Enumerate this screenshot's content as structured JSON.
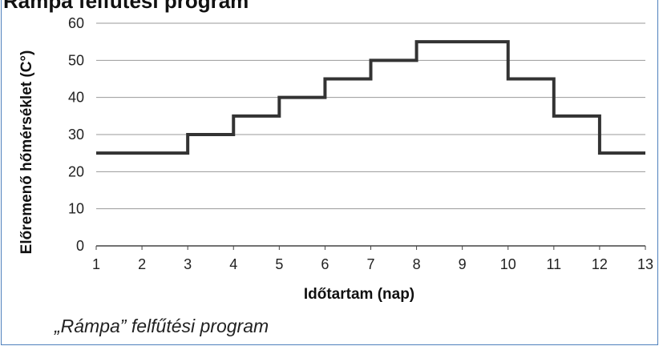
{
  "top_title": "Rámpa felfűtési program",
  "caption": "„Rámpa” felfűtési program",
  "chart_data": {
    "type": "line",
    "step": "post",
    "xlabel": "Időtartam (nap)",
    "ylabel": "Előremenő hőmérséklet (C°)",
    "xlim": [
      1,
      13
    ],
    "ylim": [
      0,
      60
    ],
    "x_ticks": [
      1,
      2,
      3,
      4,
      5,
      6,
      7,
      8,
      9,
      10,
      11,
      12,
      13
    ],
    "y_ticks": [
      0,
      10,
      20,
      30,
      40,
      50,
      60
    ],
    "grid": "horizontal",
    "series": [
      {
        "x": [
          1,
          3,
          4,
          5,
          6,
          7,
          8,
          10,
          11,
          12,
          13
        ],
        "y": [
          25,
          30,
          35,
          40,
          45,
          50,
          55,
          45,
          35,
          25,
          25
        ]
      }
    ],
    "line_color": "#333333",
    "grid_color": "#9a9a9a"
  }
}
